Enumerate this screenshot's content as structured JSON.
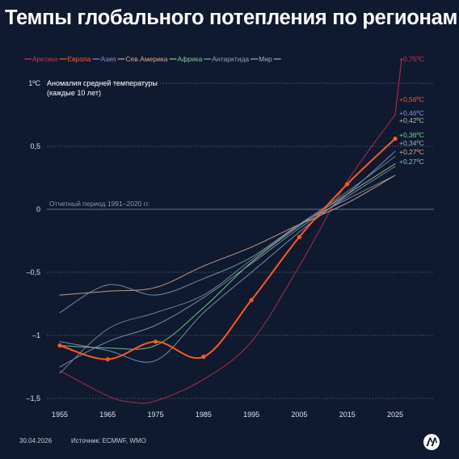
{
  "title": "Темпы глобального потепления по регионам",
  "footer": {
    "date": "30.04.2026",
    "source": "Источник: ECMWF, WMO"
  },
  "logo": {
    "text": "AA",
    "icon": "anadolu-agency-logo-icon"
  },
  "chart_data": {
    "type": "line",
    "ylabel": "Аномалия средней температуры",
    "ylabel_sub": "(каждые 10 лет)",
    "y_top_tick": "1ºC",
    "reference_line_label": "Отчетный период 1991–2020 гг.",
    "xlim": [
      1953,
      2033
    ],
    "ylim": [
      -1.55,
      1.05
    ],
    "x_ticks": [
      1955,
      1965,
      1975,
      1985,
      1995,
      2005,
      2015,
      2025
    ],
    "y_ticks": [
      {
        "value": 1,
        "label": "1ºC"
      },
      {
        "value": 0.5,
        "label": "0,5"
      },
      {
        "value": 0,
        "label": "0"
      },
      {
        "value": -0.5,
        "label": "–0,5"
      },
      {
        "value": -1,
        "label": "–1"
      },
      {
        "value": -1.5,
        "label": "–1,5"
      }
    ],
    "grid": "horizontal dotted",
    "legend_position": "top",
    "legend": [
      {
        "name": "Арктика",
        "color": "#d0344a"
      },
      {
        "name": "Европа",
        "color": "#ff5a1f"
      },
      {
        "name": "Азия",
        "color": "#8a90c8"
      },
      {
        "name": "Сев.Америка",
        "color": "#d9a98a"
      },
      {
        "name": "Африка",
        "color": "#7fce8c"
      },
      {
        "name": "Антарктида",
        "color": "#8aa7bd"
      },
      {
        "name": "Мир",
        "color": "#a9b0bc"
      }
    ],
    "series": [
      {
        "name": "Арктика",
        "color": "#c22d45",
        "width": 1,
        "markers": false,
        "points": [
          [
            1955,
            -1.28
          ],
          [
            1965,
            -1.48
          ],
          [
            1970,
            -1.53
          ],
          [
            1975,
            -1.52
          ],
          [
            1985,
            -1.35
          ],
          [
            1995,
            -1.05
          ],
          [
            2005,
            -0.45
          ],
          [
            2015,
            0.22
          ],
          [
            2025,
            0.75
          ]
        ]
      },
      {
        "name": "Сев.Америка",
        "color": "#d9a98a",
        "width": 1,
        "markers": false,
        "points": [
          [
            1955,
            -0.68
          ],
          [
            1965,
            -0.65
          ],
          [
            1975,
            -0.62
          ],
          [
            1985,
            -0.45
          ],
          [
            1995,
            -0.3
          ],
          [
            2005,
            -0.12
          ],
          [
            2015,
            0.05
          ],
          [
            2025,
            0.27
          ]
        ]
      },
      {
        "name": "Азия",
        "color": "#8a90c8",
        "width": 1,
        "markers": false,
        "points": [
          [
            1955,
            -1.05
          ],
          [
            1965,
            -1.12
          ],
          [
            1975,
            -1.2
          ],
          [
            1985,
            -0.82
          ],
          [
            1995,
            -0.5
          ],
          [
            2005,
            -0.18
          ],
          [
            2015,
            0.12
          ],
          [
            2025,
            0.46
          ]
        ]
      },
      {
        "name": "Африка",
        "color": "#7fce8c",
        "width": 1,
        "markers": false,
        "points": [
          [
            1955,
            -1.08
          ],
          [
            1965,
            -1.1
          ],
          [
            1975,
            -1.08
          ],
          [
            1985,
            -0.78
          ],
          [
            1995,
            -0.42
          ],
          [
            2005,
            -0.13
          ],
          [
            2015,
            0.12
          ],
          [
            2025,
            0.36
          ]
        ]
      },
      {
        "name": "Антарктида",
        "color": "#7f95a8",
        "width": 1,
        "markers": false,
        "points": [
          [
            1955,
            -0.82
          ],
          [
            1965,
            -0.6
          ],
          [
            1975,
            -0.68
          ],
          [
            1985,
            -0.55
          ],
          [
            1995,
            -0.38
          ],
          [
            2005,
            -0.12
          ],
          [
            2015,
            0.08
          ],
          [
            2025,
            0.27
          ]
        ]
      },
      {
        "name": "Мир",
        "color": "#8c96a6",
        "width": 1,
        "markers": false,
        "points": [
          [
            1955,
            -1.25
          ],
          [
            1965,
            -1.05
          ],
          [
            1975,
            -0.92
          ],
          [
            1985,
            -0.7
          ],
          [
            1995,
            -0.43
          ],
          [
            2005,
            -0.15
          ],
          [
            2015,
            0.1
          ],
          [
            2025,
            0.34
          ]
        ]
      },
      {
        "name": "",
        "color": "#7c8aa0",
        "width": 1,
        "markers": false,
        "points": [
          [
            1955,
            -1.3
          ],
          [
            1965,
            -0.95
          ],
          [
            1975,
            -0.82
          ],
          [
            1985,
            -0.68
          ],
          [
            1995,
            -0.4
          ],
          [
            2005,
            -0.12
          ],
          [
            2015,
            0.14
          ],
          [
            2025,
            0.42
          ]
        ]
      },
      {
        "name": "Европа",
        "color": "#ff5a1f",
        "width": 2,
        "markers": true,
        "points": [
          [
            1955,
            -1.08
          ],
          [
            1965,
            -1.19
          ],
          [
            1975,
            -1.05
          ],
          [
            1985,
            -1.17
          ],
          [
            1995,
            -0.72
          ],
          [
            2005,
            -0.22
          ],
          [
            2015,
            0.2
          ],
          [
            2025,
            0.56
          ]
        ]
      }
    ],
    "end_labels": [
      {
        "label": "+0,75ºC",
        "value": 0.75,
        "color": "#d0344a"
      },
      {
        "label": "+0,56ºC",
        "value": 0.56,
        "color": "#ff5a1f"
      },
      {
        "label": "+0,46ºC",
        "value": 0.46,
        "color": "#8a90c8"
      },
      {
        "label": "+0,42ºC",
        "value": 0.42,
        "color": "#b5b8a8"
      },
      {
        "label": "+0,36ºC",
        "value": 0.36,
        "color": "#7fce8c"
      },
      {
        "label": "+0,34ºC",
        "value": 0.34,
        "color": "#a9b0bc"
      },
      {
        "label": "+0,27ºC",
        "value": 0.27,
        "color": "#d9a98a"
      },
      {
        "label": "+0,27ºC",
        "value": 0.27,
        "color": "#8fb8cf"
      }
    ]
  }
}
